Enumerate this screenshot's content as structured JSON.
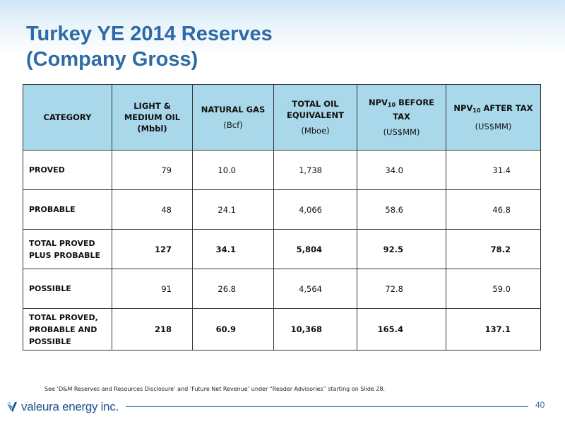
{
  "slide": {
    "title_line1": "Turkey YE 2014 Reserves",
    "title_line2": "(Company Gross)"
  },
  "table": {
    "headers": {
      "category": "CATEGORY",
      "light_medium_oil": "LIGHT & MEDIUM OIL (Mbbl)",
      "natural_gas": "NATURAL GAS",
      "natural_gas_unit": "(Bcf)",
      "total_oil_equiv": "TOTAL OIL EQUIVALENT",
      "total_oil_equiv_unit": "(Mboe)",
      "npv_before_prefix": "NPV",
      "npv_before_sub": "10",
      "npv_before_suffix": " BEFORE TAX",
      "npv_before_unit": "(US$MM)",
      "npv_after_prefix": "NPV",
      "npv_after_sub": "10",
      "npv_after_suffix": " AFTER TAX",
      "npv_after_unit": "(US$MM)"
    },
    "rows": [
      {
        "category": "PROVED",
        "oil": "79",
        "gas": "10.0",
        "boe": "1,738",
        "npv_before": "34.0",
        "npv_after": "31.4"
      },
      {
        "category": "PROBABLE",
        "oil": "48",
        "gas": "24.1",
        "boe": "4,066",
        "npv_before": "58.6",
        "npv_after": "46.8"
      },
      {
        "category": "TOTAL PROVED PLUS PROBABLE",
        "oil": "127",
        "gas": "34.1",
        "boe": "5,804",
        "npv_before": "92.5",
        "npv_after": "78.2"
      },
      {
        "category": "POSSIBLE",
        "oil": "91",
        "gas": "26.8",
        "boe": "4,564",
        "npv_before": "72.8",
        "npv_after": "59.0"
      },
      {
        "category": "TOTAL PROVED, PROBABLE AND POSSIBLE",
        "oil": "218",
        "gas": "60.9",
        "boe": "10,368",
        "npv_before": "165.4",
        "npv_after": "137.1"
      }
    ]
  },
  "footnote": "See ‘D&M Reserves and Resources Disclosure’ and ‘Future Net Revenue’ under “Reader Advisories” starting on Slide 28.",
  "footer": {
    "logo_text": "valeura energy inc.",
    "page_number": "40",
    "accent_color": "#2e6aa6",
    "header_fill_color": "#a8d8ea"
  }
}
